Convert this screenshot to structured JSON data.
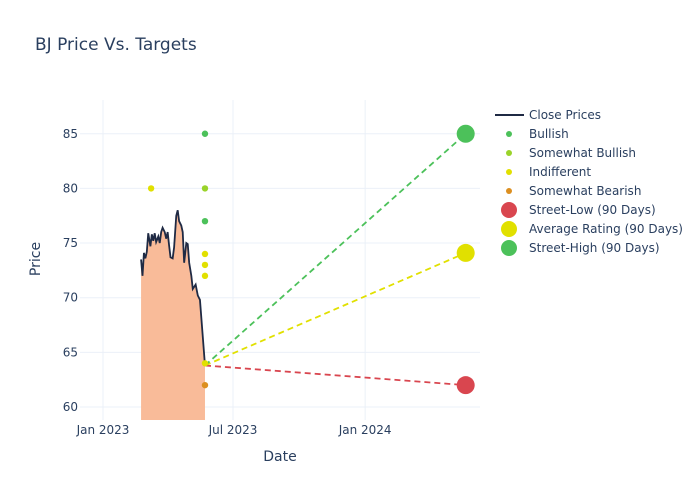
{
  "chart_data": {
    "type": "line",
    "title": "BJ Price Vs. Targets",
    "xlabel": "Date",
    "ylabel": "Price",
    "ylim": [
      59,
      88
    ],
    "xlim": [
      "2022-12-01",
      "2024-06-15"
    ],
    "yticks": [
      60,
      65,
      70,
      75,
      80,
      85
    ],
    "xticks": [
      {
        "date": "2023-01-01",
        "label": "Jan 2023"
      },
      {
        "date": "2023-07-01",
        "label": "Jul 2023"
      },
      {
        "date": "2024-01-01",
        "label": "Jan 2024"
      }
    ],
    "grid": true,
    "legend_position": "right",
    "close": {
      "name": "Close Prices",
      "color": "#1f2a44",
      "fill": "#f9bb99",
      "dates": [
        "2023-02-23",
        "2023-02-25",
        "2023-02-27",
        "2023-03-01",
        "2023-03-03",
        "2023-03-05",
        "2023-03-08",
        "2023-03-10",
        "2023-03-12",
        "2023-03-14",
        "2023-03-16",
        "2023-03-19",
        "2023-03-21",
        "2023-03-23",
        "2023-03-25",
        "2023-03-28",
        "2023-03-30",
        "2023-04-01",
        "2023-04-03",
        "2023-04-05",
        "2023-04-08",
        "2023-04-10",
        "2023-04-13",
        "2023-04-15",
        "2023-04-17",
        "2023-04-20",
        "2023-04-22",
        "2023-04-24",
        "2023-04-27",
        "2023-04-29",
        "2023-05-01",
        "2023-05-04",
        "2023-05-06",
        "2023-05-08",
        "2023-05-10",
        "2023-05-13",
        "2023-05-16",
        "2023-05-23"
      ],
      "values": [
        73.5,
        72.0,
        74.1,
        73.6,
        74.2,
        75.9,
        74.7,
        75.8,
        75.2,
        75.9,
        75.1,
        75.6,
        75.0,
        76.0,
        76.4,
        76.0,
        75.4,
        76.0,
        74.8,
        73.7,
        73.6,
        74.6,
        77.5,
        78.0,
        77.0,
        76.6,
        76.0,
        73.2,
        75.0,
        74.9,
        73.2,
        72.0,
        70.8,
        71.0,
        71.2,
        70.2,
        69.8,
        63.8
      ]
    },
    "ratings": [
      {
        "name": "Bullish",
        "color": "#4cc15a",
        "points": [
          {
            "date": "2023-05-23",
            "value": 85
          },
          {
            "date": "2023-05-23",
            "value": 77
          }
        ]
      },
      {
        "name": "Somewhat Bullish",
        "color": "#9ad32a",
        "points": [
          {
            "date": "2023-05-23",
            "value": 80
          }
        ]
      },
      {
        "name": "Indifferent",
        "color": "#e1e000",
        "points": [
          {
            "date": "2023-03-09",
            "value": 80
          },
          {
            "date": "2023-05-23",
            "value": 74
          },
          {
            "date": "2023-05-23",
            "value": 73
          },
          {
            "date": "2023-05-23",
            "value": 72
          },
          {
            "date": "2023-05-23",
            "value": 64
          }
        ]
      },
      {
        "name": "Somewhat Bearish",
        "color": "#dc8f20",
        "points": [
          {
            "date": "2023-05-23",
            "value": 62
          }
        ]
      }
    ],
    "targets": {
      "start": {
        "date": "2023-05-23",
        "value": 63.8
      },
      "end_date": "2024-05-20",
      "series": [
        {
          "name": "Street-Low (90 Days)",
          "color": "#d9464f",
          "value": 62
        },
        {
          "name": "Average Rating (90 Days)",
          "color": "#e1e000",
          "value": 74.1
        },
        {
          "name": "Street-High (90 Days)",
          "color": "#4cc15a",
          "value": 85
        }
      ]
    }
  }
}
